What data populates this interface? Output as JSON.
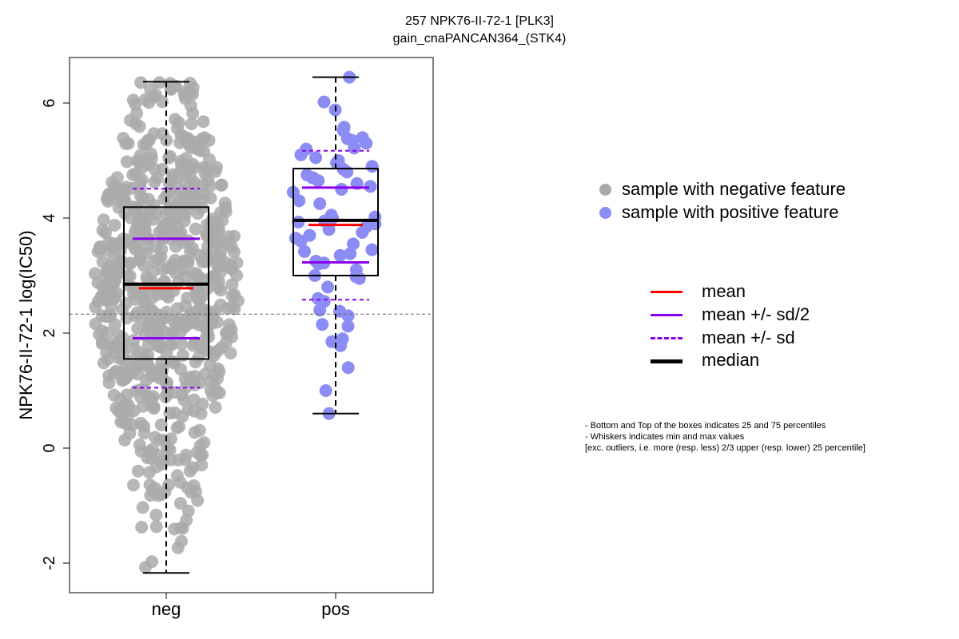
{
  "title": "257 NPK76-II-72-1 [PLK3]",
  "subtitle": "gain_cnaPANCAN364_(STK4)",
  "chart_data": {
    "type": "box",
    "ylabel": "NPK76-II-72-1 log(IC50)",
    "ylim": [
      -2.5,
      6.8
    ],
    "yticks": [
      -2,
      0,
      2,
      4,
      6
    ],
    "categories": [
      "neg",
      "pos"
    ],
    "reference_line_y": 2.33,
    "groups": [
      {
        "name": "neg",
        "color": "#aaaaaa",
        "min": -2.17,
        "q1": 1.55,
        "median": 2.85,
        "q3": 4.19,
        "max": 6.37,
        "mean": 2.78,
        "mean_minus_half_sd": 1.91,
        "mean_plus_half_sd": 3.64,
        "mean_minus_sd": 1.05,
        "mean_plus_sd": 4.51
      },
      {
        "name": "pos",
        "color": "#8c8cf5",
        "min": 0.6,
        "q1": 3.0,
        "median": 3.96,
        "q3": 4.86,
        "max": 6.45,
        "mean": 3.88,
        "mean_minus_half_sd": 3.23,
        "mean_plus_half_sd": 4.53,
        "mean_minus_sd": 2.58,
        "mean_plus_sd": 5.17,
        "points": [
          6.45,
          6.02,
          5.88,
          5.58,
          5.52,
          5.4,
          5.38,
          5.35,
          5.3,
          5.22,
          5.2,
          5.1,
          5.05,
          5.0,
          4.96,
          4.9,
          4.85,
          4.8,
          4.75,
          4.7,
          4.7,
          4.65,
          4.6,
          4.55,
          4.5,
          4.45,
          4.3,
          4.25,
          4.05,
          4.02,
          4.0,
          3.95,
          3.93,
          3.9,
          3.85,
          3.8,
          3.75,
          3.7,
          3.65,
          3.6,
          3.55,
          3.45,
          3.42,
          3.38,
          3.35,
          3.25,
          3.22,
          3.2,
          3.1,
          3.0,
          2.98,
          2.95,
          2.8,
          2.6,
          2.55,
          2.4,
          2.38,
          2.3,
          2.15,
          2.12,
          1.9,
          1.85,
          1.78,
          1.4,
          1.0,
          0.6
        ]
      }
    ]
  },
  "legend_points": [
    {
      "label": "sample with negative feature",
      "color": "#aaaaaa"
    },
    {
      "label": "sample with positive feature",
      "color": "#8c8cf5"
    }
  ],
  "legend_lines": [
    {
      "label": "mean",
      "color": "#ff0000",
      "style": "solid"
    },
    {
      "label": "mean +/- sd/2",
      "color": "#8b00ee",
      "style": "solid"
    },
    {
      "label": "mean +/- sd",
      "color": "#8b00ee",
      "style": "dashed"
    },
    {
      "label": "median",
      "color": "#000000",
      "style": "thick"
    }
  ],
  "notes": [
    "- Bottom and Top of the boxes indicates 25 and 75 percentiles",
    "- Whiskers indicates min and max values",
    "[exc. outliers, i.e. more (resp. less) 2/3 upper (resp. lower) 25 percentile]"
  ]
}
